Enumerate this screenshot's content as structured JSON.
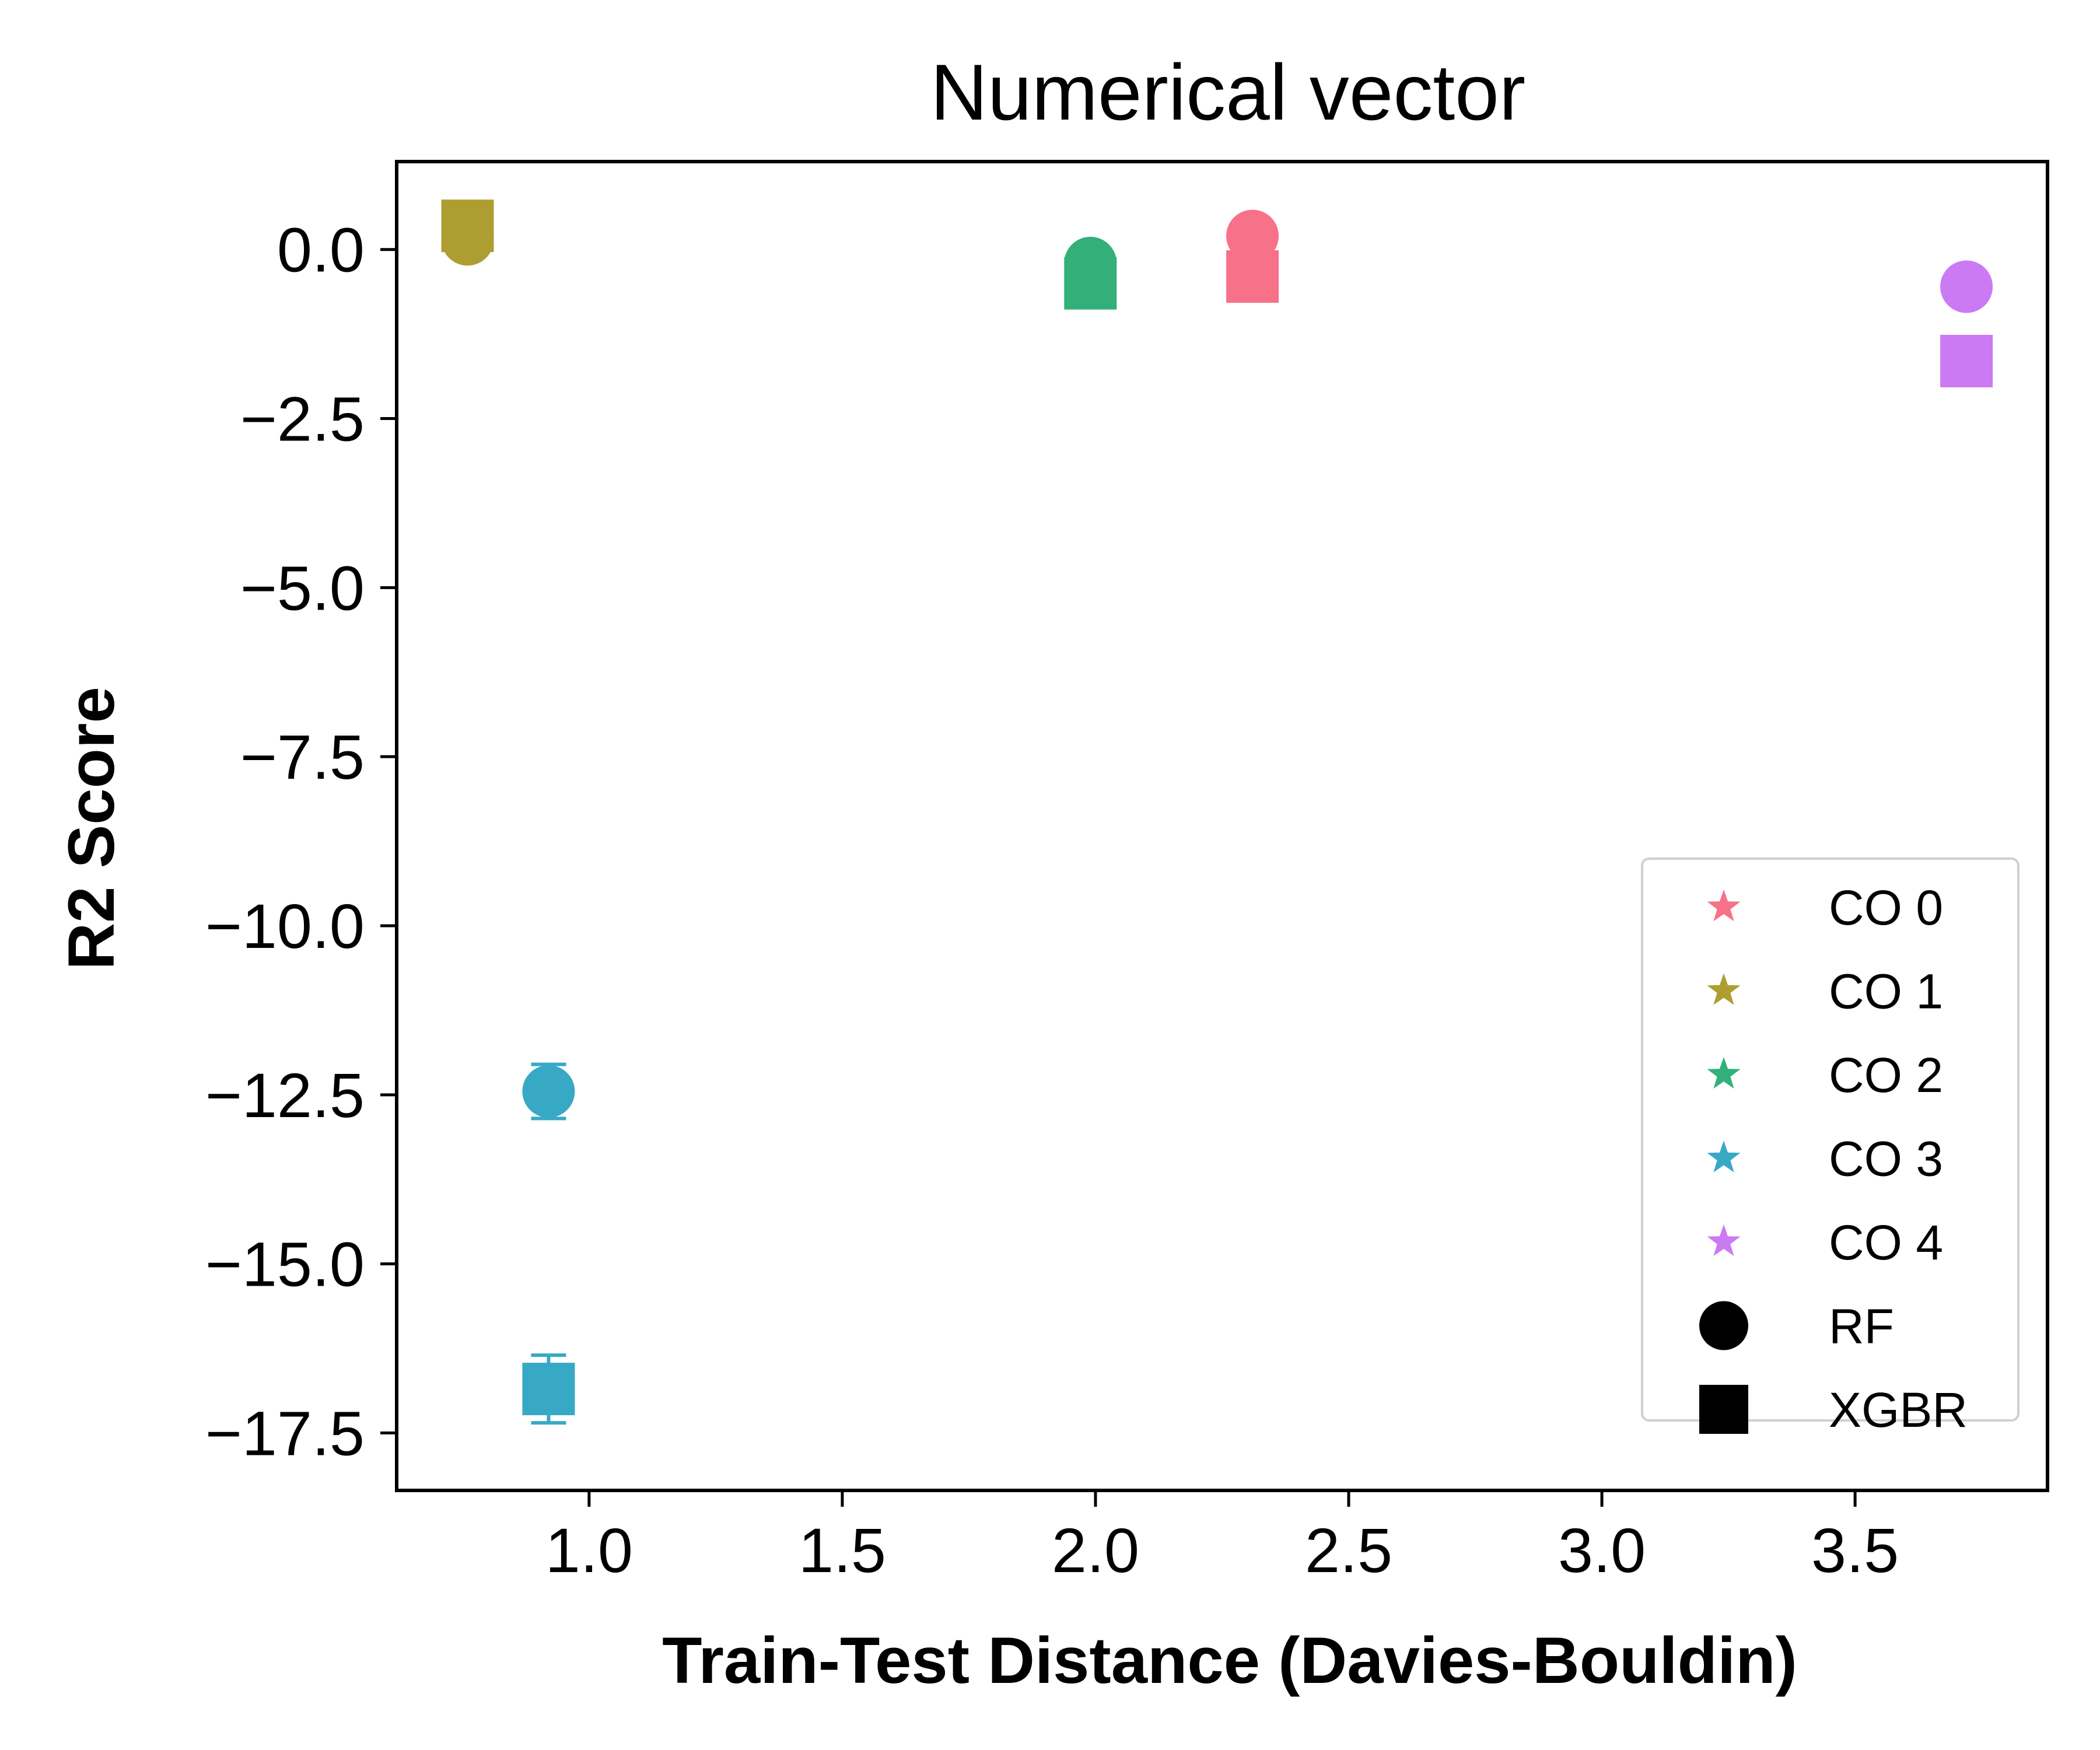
{
  "chart_data": {
    "type": "scatter",
    "title": "Numerical vector",
    "xlabel": "Train-Test Distance (Davies-Bouldin)",
    "ylabel": "R2 Score",
    "xlim": [
      0.62,
      3.88
    ],
    "ylim": [
      -18.35,
      1.3
    ],
    "xticks": [
      1.0,
      1.5,
      2.0,
      2.5,
      3.0,
      3.5
    ],
    "yticks": [
      0.0,
      -2.5,
      -5.0,
      -7.5,
      -10.0,
      -12.5,
      -15.0,
      -17.5
    ],
    "xtick_labels": [
      "1.0",
      "1.5",
      "2.0",
      "2.5",
      "3.0",
      "3.5"
    ],
    "ytick_labels": [
      "0.0",
      "−2.5",
      "−5.0",
      "−7.5",
      "−10.0",
      "−12.5",
      "−15.0",
      "−17.5"
    ],
    "grid": false,
    "legend_position": "lower-right",
    "groups": [
      {
        "name": "CO 0",
        "color": "#f77189"
      },
      {
        "name": "CO 1",
        "color": "#ae9d31"
      },
      {
        "name": "CO 2",
        "color": "#33b07a"
      },
      {
        "name": "CO 3",
        "color": "#38a9c5"
      },
      {
        "name": "CO 4",
        "color": "#cc7af4"
      }
    ],
    "models": [
      {
        "name": "RF",
        "marker": "circle"
      },
      {
        "name": "XGBR",
        "marker": "square"
      }
    ],
    "series": [
      {
        "group": "CO 0",
        "model": "RF",
        "x": 2.31,
        "y": 0.2,
        "err": 0.05
      },
      {
        "group": "CO 0",
        "model": "XGBR",
        "x": 2.31,
        "y": -0.4,
        "err": 0.05
      },
      {
        "group": "CO 1",
        "model": "RF",
        "x": 0.76,
        "y": 0.15,
        "err": 0.05
      },
      {
        "group": "CO 1",
        "model": "XGBR",
        "x": 0.76,
        "y": 0.35,
        "err": 0.05
      },
      {
        "group": "CO 2",
        "model": "RF",
        "x": 1.99,
        "y": -0.2,
        "err": 0.05
      },
      {
        "group": "CO 2",
        "model": "XGBR",
        "x": 1.99,
        "y": -0.5,
        "err": 0.05
      },
      {
        "group": "CO 3",
        "model": "RF",
        "x": 0.92,
        "y": -12.45,
        "err": 0.4
      },
      {
        "group": "CO 3",
        "model": "XGBR",
        "x": 0.92,
        "y": -16.85,
        "err": 0.5
      },
      {
        "group": "CO 4",
        "model": "RF",
        "x": 3.72,
        "y": -0.55,
        "err": 0.05
      },
      {
        "group": "CO 4",
        "model": "XGBR",
        "x": 3.72,
        "y": -1.65,
        "err": 0.05
      }
    ]
  }
}
